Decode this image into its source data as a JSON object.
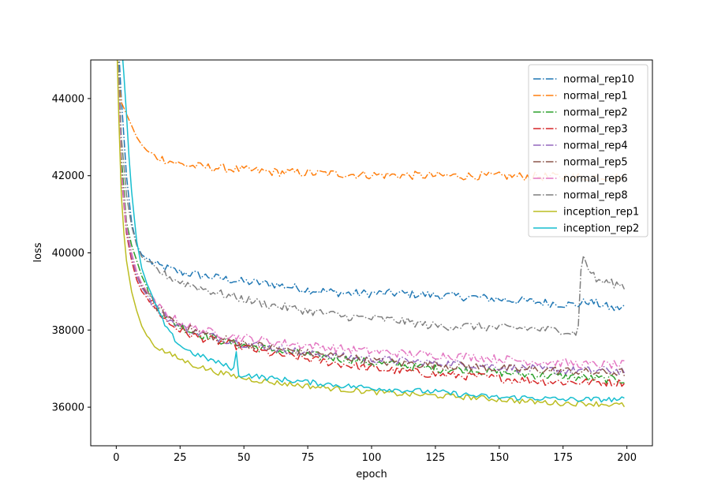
{
  "chart_data": {
    "type": "line",
    "title": "",
    "xlabel": "epoch",
    "ylabel": "loss",
    "xlim": [
      -10,
      210
    ],
    "ylim": [
      35000,
      45000
    ],
    "x_ticks": [
      0,
      25,
      50,
      75,
      100,
      125,
      150,
      175,
      200
    ],
    "y_ticks": [
      36000,
      38000,
      40000,
      42000,
      44000
    ],
    "legend_position": "top-right",
    "grid": false,
    "series": [
      {
        "name": "normal_rep10",
        "color": "#1f77b4",
        "dash": "dashdot",
        "points": [
          [
            0,
            46500
          ],
          [
            2,
            44000
          ],
          [
            4,
            42000
          ],
          [
            6,
            40800
          ],
          [
            8,
            40200
          ],
          [
            10,
            39950
          ],
          [
            15,
            39700
          ],
          [
            20,
            39600
          ],
          [
            25,
            39500
          ],
          [
            30,
            39450
          ],
          [
            40,
            39350
          ],
          [
            50,
            39250
          ],
          [
            60,
            39200
          ],
          [
            75,
            39050
          ],
          [
            90,
            38950
          ],
          [
            100,
            38950
          ],
          [
            110,
            38950
          ],
          [
            125,
            38900
          ],
          [
            140,
            38850
          ],
          [
            150,
            38800
          ],
          [
            160,
            38750
          ],
          [
            170,
            38700
          ],
          [
            180,
            38650
          ],
          [
            185,
            38750
          ],
          [
            190,
            38650
          ],
          [
            195,
            38550
          ],
          [
            199,
            38600
          ]
        ]
      },
      {
        "name": "normal_rep1",
        "color": "#ff7f0e",
        "dash": "dashdot",
        "points": [
          [
            0,
            46500
          ],
          [
            1,
            44500
          ],
          [
            2,
            43900
          ],
          [
            4,
            43600
          ],
          [
            6,
            43300
          ],
          [
            8,
            43000
          ],
          [
            10,
            42800
          ],
          [
            12,
            42650
          ],
          [
            15,
            42500
          ],
          [
            20,
            42400
          ],
          [
            25,
            42300
          ],
          [
            30,
            42250
          ],
          [
            40,
            42200
          ],
          [
            50,
            42150
          ],
          [
            60,
            42100
          ],
          [
            75,
            42070
          ],
          [
            90,
            42040
          ],
          [
            100,
            42020
          ],
          [
            125,
            42000
          ],
          [
            150,
            41990
          ],
          [
            175,
            41970
          ],
          [
            199,
            41960
          ]
        ]
      },
      {
        "name": "normal_rep2",
        "color": "#2ca02c",
        "dash": "dashdot",
        "points": [
          [
            0,
            46500
          ],
          [
            2,
            42500
          ],
          [
            4,
            40800
          ],
          [
            6,
            40200
          ],
          [
            8,
            39800
          ],
          [
            10,
            39400
          ],
          [
            15,
            38700
          ],
          [
            20,
            38300
          ],
          [
            25,
            38100
          ],
          [
            30,
            37950
          ],
          [
            40,
            37750
          ],
          [
            50,
            37600
          ],
          [
            60,
            37500
          ],
          [
            75,
            37350
          ],
          [
            90,
            37250
          ],
          [
            100,
            37150
          ],
          [
            110,
            37100
          ],
          [
            125,
            37000
          ],
          [
            140,
            36950
          ],
          [
            150,
            36900
          ],
          [
            160,
            36850
          ],
          [
            175,
            36800
          ],
          [
            185,
            36750
          ],
          [
            199,
            36700
          ]
        ]
      },
      {
        "name": "normal_rep3",
        "color": "#d62728",
        "dash": "dashdot",
        "points": [
          [
            0,
            46500
          ],
          [
            2,
            42000
          ],
          [
            4,
            40500
          ],
          [
            6,
            39800
          ],
          [
            8,
            39300
          ],
          [
            10,
            39000
          ],
          [
            15,
            38600
          ],
          [
            20,
            38200
          ],
          [
            25,
            38000
          ],
          [
            30,
            37850
          ],
          [
            40,
            37700
          ],
          [
            50,
            37550
          ],
          [
            60,
            37400
          ],
          [
            75,
            37250
          ],
          [
            90,
            37100
          ],
          [
            100,
            37000
          ],
          [
            110,
            36950
          ],
          [
            125,
            36850
          ],
          [
            140,
            36800
          ],
          [
            150,
            36750
          ],
          [
            160,
            36700
          ],
          [
            175,
            36650
          ],
          [
            185,
            36650
          ],
          [
            199,
            36650
          ]
        ]
      },
      {
        "name": "normal_rep4",
        "color": "#9467bd",
        "dash": "dashdot",
        "points": [
          [
            0,
            46500
          ],
          [
            2,
            42000
          ],
          [
            4,
            40600
          ],
          [
            6,
            39900
          ],
          [
            8,
            39400
          ],
          [
            10,
            39100
          ],
          [
            15,
            38600
          ],
          [
            20,
            38300
          ],
          [
            25,
            38100
          ],
          [
            30,
            37950
          ],
          [
            40,
            37800
          ],
          [
            50,
            37650
          ],
          [
            60,
            37550
          ],
          [
            75,
            37400
          ],
          [
            90,
            37300
          ],
          [
            100,
            37250
          ],
          [
            110,
            37200
          ],
          [
            125,
            37150
          ],
          [
            140,
            37100
          ],
          [
            150,
            37050
          ],
          [
            160,
            37000
          ],
          [
            175,
            36950
          ],
          [
            185,
            36950
          ],
          [
            199,
            36950
          ]
        ]
      },
      {
        "name": "normal_rep5",
        "color": "#8c564b",
        "dash": "dashdot",
        "points": [
          [
            0,
            46500
          ],
          [
            2,
            42200
          ],
          [
            4,
            40700
          ],
          [
            6,
            40000
          ],
          [
            8,
            39500
          ],
          [
            10,
            39150
          ],
          [
            15,
            38650
          ],
          [
            20,
            38350
          ],
          [
            25,
            38150
          ],
          [
            30,
            38000
          ],
          [
            40,
            37800
          ],
          [
            50,
            37650
          ],
          [
            60,
            37550
          ],
          [
            75,
            37400
          ],
          [
            90,
            37300
          ],
          [
            100,
            37200
          ],
          [
            110,
            37150
          ],
          [
            125,
            37100
          ],
          [
            140,
            37050
          ],
          [
            150,
            37000
          ],
          [
            160,
            36980
          ],
          [
            175,
            36950
          ],
          [
            185,
            36900
          ],
          [
            199,
            36900
          ]
        ]
      },
      {
        "name": "normal_rep6",
        "color": "#e377c2",
        "dash": "dashdot",
        "points": [
          [
            0,
            46500
          ],
          [
            2,
            42100
          ],
          [
            4,
            40700
          ],
          [
            6,
            40000
          ],
          [
            8,
            39500
          ],
          [
            10,
            39200
          ],
          [
            15,
            38700
          ],
          [
            20,
            38400
          ],
          [
            25,
            38200
          ],
          [
            30,
            38050
          ],
          [
            40,
            37900
          ],
          [
            50,
            37800
          ],
          [
            60,
            37700
          ],
          [
            75,
            37600
          ],
          [
            90,
            37500
          ],
          [
            100,
            37450
          ],
          [
            110,
            37400
          ],
          [
            125,
            37350
          ],
          [
            140,
            37300
          ],
          [
            150,
            37250
          ],
          [
            160,
            37200
          ],
          [
            175,
            37150
          ],
          [
            185,
            37100
          ],
          [
            199,
            37100
          ]
        ]
      },
      {
        "name": "normal_rep8",
        "color": "#7f7f7f",
        "dash": "dashdot",
        "points": [
          [
            0,
            46500
          ],
          [
            2,
            43000
          ],
          [
            4,
            41500
          ],
          [
            6,
            40700
          ],
          [
            8,
            40200
          ],
          [
            10,
            39900
          ],
          [
            15,
            39600
          ],
          [
            20,
            39400
          ],
          [
            25,
            39250
          ],
          [
            30,
            39150
          ],
          [
            40,
            38950
          ],
          [
            50,
            38800
          ],
          [
            60,
            38650
          ],
          [
            75,
            38500
          ],
          [
            90,
            38350
          ],
          [
            100,
            38300
          ],
          [
            110,
            38250
          ],
          [
            125,
            38100
          ],
          [
            140,
            38100
          ],
          [
            150,
            38050
          ],
          [
            160,
            38050
          ],
          [
            170,
            38000
          ],
          [
            175,
            38000
          ],
          [
            180,
            37900
          ],
          [
            181,
            38200
          ],
          [
            182,
            39500
          ],
          [
            183,
            39900
          ],
          [
            185,
            39600
          ],
          [
            188,
            39300
          ],
          [
            191,
            39250
          ],
          [
            195,
            39200
          ],
          [
            199,
            39150
          ]
        ]
      },
      {
        "name": "inception_rep1",
        "color": "#bcbd22",
        "dash": "solid",
        "points": [
          [
            0,
            46000
          ],
          [
            1,
            43500
          ],
          [
            2,
            41500
          ],
          [
            3,
            40500
          ],
          [
            4,
            39800
          ],
          [
            6,
            39000
          ],
          [
            8,
            38500
          ],
          [
            10,
            38100
          ],
          [
            12,
            37850
          ],
          [
            15,
            37600
          ],
          [
            20,
            37400
          ],
          [
            25,
            37250
          ],
          [
            30,
            37100
          ],
          [
            40,
            36900
          ],
          [
            50,
            36750
          ],
          [
            60,
            36650
          ],
          [
            75,
            36550
          ],
          [
            90,
            36450
          ],
          [
            100,
            36400
          ],
          [
            110,
            36350
          ],
          [
            125,
            36300
          ],
          [
            140,
            36250
          ],
          [
            150,
            36200
          ],
          [
            160,
            36150
          ],
          [
            175,
            36100
          ],
          [
            185,
            36100
          ],
          [
            199,
            36050
          ]
        ]
      },
      {
        "name": "inception_rep2",
        "color": "#17becf",
        "dash": "solid",
        "points": [
          [
            0,
            46000
          ],
          [
            2,
            45500
          ],
          [
            3,
            44600
          ],
          [
            4,
            43600
          ],
          [
            5,
            42500
          ],
          [
            6,
            41600
          ],
          [
            8,
            40300
          ],
          [
            10,
            39600
          ],
          [
            12,
            39200
          ],
          [
            15,
            38700
          ],
          [
            20,
            38000
          ],
          [
            25,
            37600
          ],
          [
            30,
            37400
          ],
          [
            40,
            37150
          ],
          [
            46,
            37000
          ],
          [
            47,
            37400
          ],
          [
            48,
            36800
          ],
          [
            50,
            36850
          ],
          [
            60,
            36750
          ],
          [
            75,
            36650
          ],
          [
            90,
            36550
          ],
          [
            100,
            36500
          ],
          [
            110,
            36450
          ],
          [
            125,
            36400
          ],
          [
            140,
            36300
          ],
          [
            150,
            36250
          ],
          [
            160,
            36250
          ],
          [
            175,
            36200
          ],
          [
            185,
            36200
          ],
          [
            199,
            36200
          ]
        ]
      }
    ]
  }
}
